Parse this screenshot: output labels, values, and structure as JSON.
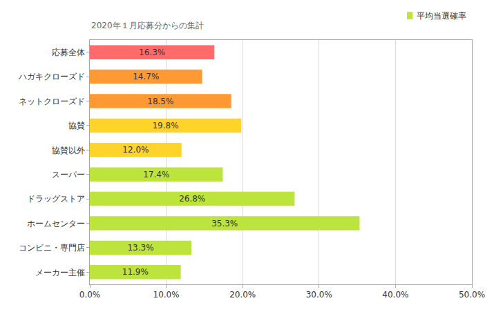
{
  "chart_data": {
    "type": "bar",
    "orientation": "horizontal",
    "subtitle": "2020年１月応募分からの集計",
    "categories": [
      "応募全体",
      "ハガキクローズド",
      "ネットクローズド",
      "協賛",
      "協賛以外",
      "スーパー",
      "ドラッグストア",
      "ホームセンター",
      "コンビニ・専門店",
      "メーカー主催"
    ],
    "series": [
      {
        "name": "平均当選確率",
        "color": "#bde33d",
        "values": [
          16.3,
          14.7,
          18.5,
          19.8,
          12.0,
          17.4,
          26.8,
          35.3,
          13.3,
          11.9
        ],
        "value_labels": [
          "16.3%",
          "14.7%",
          "18.5%",
          "19.8%",
          "12.0%",
          "17.4%",
          "26.8%",
          "35.3%",
          "13.3%",
          "11.9%"
        ]
      }
    ],
    "colors": [
      "#ff6b6b",
      "#ff9933",
      "#ff9933",
      "#ffd42a",
      "#ffd42a",
      "#bde33d",
      "#bde33d",
      "#bde33d",
      "#bde33d",
      "#bde33d"
    ],
    "xlim": [
      0,
      50
    ],
    "xticks": [
      {
        "value": 0,
        "label": "0.0%"
      },
      {
        "value": 10,
        "label": "10.0%"
      },
      {
        "value": 20,
        "label": "20.0%"
      },
      {
        "value": 30,
        "label": "30.0%"
      },
      {
        "value": 40,
        "label": "40.0%"
      },
      {
        "value": 50,
        "label": "50.0%"
      }
    ],
    "grid": true,
    "data_labels": true,
    "legend": "top-right"
  }
}
